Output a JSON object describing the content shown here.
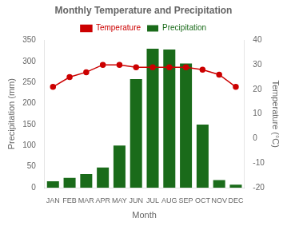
{
  "chart_data": {
    "type": "bar",
    "title": "Monthly Temperature and Precipitation",
    "xlabel": "Month",
    "ylabel": "Precipitation (mm)",
    "y2label": "Temperature (°C)",
    "categories": [
      "JAN",
      "FEB",
      "MAR",
      "APR",
      "MAY",
      "JUN",
      "JUL",
      "AUG",
      "SEP",
      "OCT",
      "NOV",
      "DEC"
    ],
    "series": [
      {
        "name": "Precipitation",
        "color": "#1a6b1a",
        "values": [
          15,
          23,
          32,
          48,
          100,
          258,
          330,
          328,
          295,
          150,
          18,
          7
        ]
      },
      {
        "name": "Temperature",
        "type": "line",
        "color": "#cc0000",
        "marker": "circle",
        "axis": "y2",
        "values": [
          21,
          25,
          27,
          30,
          30,
          29,
          29,
          29,
          29,
          28,
          26,
          21
        ]
      }
    ],
    "ylim": [
      0,
      350
    ],
    "yticks": [
      0,
      50,
      100,
      150,
      200,
      250,
      300,
      350
    ],
    "y2lim": [
      -20,
      40
    ],
    "y2ticks": [
      -20,
      -10,
      0,
      10,
      20,
      30,
      40
    ],
    "grid": false,
    "legend": "top"
  }
}
